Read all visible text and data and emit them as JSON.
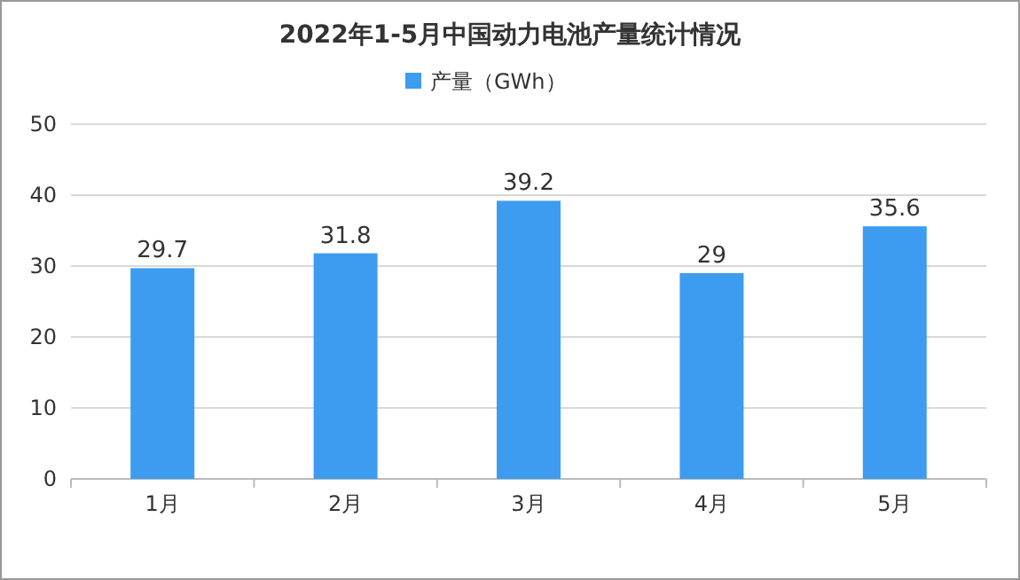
{
  "chart_data": {
    "type": "bar",
    "title": "2022年1-5月中国动力电池产量统计情况",
    "categories": [
      "1月",
      "2月",
      "3月",
      "4月",
      "5月"
    ],
    "series": [
      {
        "name": "产量（GWh）",
        "color": "#3d9cf0",
        "values": [
          29.7,
          31.8,
          39.2,
          29,
          35.6
        ]
      }
    ],
    "ylim": [
      0,
      50
    ],
    "yticks": [
      0,
      10,
      20,
      30,
      40,
      50
    ],
    "grid": "y",
    "legend": "top",
    "data_labels": true
  }
}
